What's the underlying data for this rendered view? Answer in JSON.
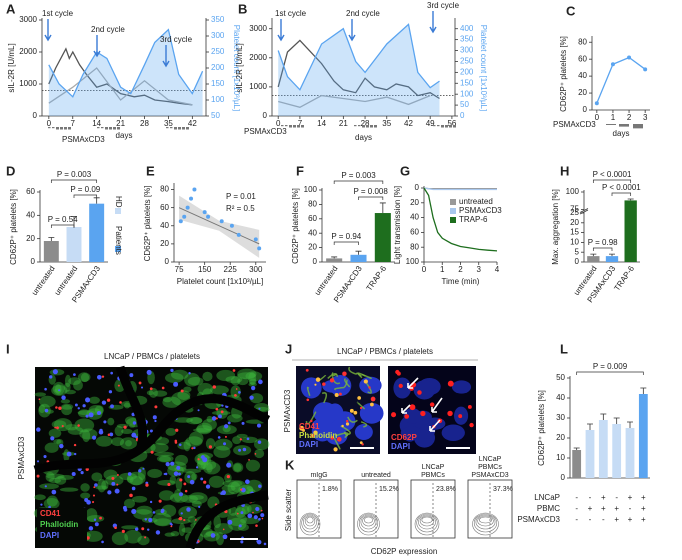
{
  "chart_data": [
    {
      "type": "line",
      "panel": "A",
      "xlim": [
        -2,
        46
      ],
      "xticks": [
        0,
        7,
        14,
        21,
        28,
        35,
        42
      ],
      "xlabel": "days",
      "ylim": [
        0,
        3000
      ],
      "yticks": [
        0,
        1000,
        2000,
        3000
      ],
      "ylabel": "sIL-2R [U/mL]",
      "y2lim": [
        50,
        350
      ],
      "y2ticks": [
        50,
        100,
        150,
        200,
        250,
        300,
        350
      ],
      "y2label": "Platelet count [1x10³/µL]",
      "reference_line": 800,
      "annotations": [
        "1st cycle",
        "2nd cycle",
        "3rd cycle"
      ],
      "schedule_label": "PSMAxCD3",
      "series": [
        {
          "color": "#555555",
          "x": [
            0,
            2,
            4,
            5,
            6,
            7,
            9,
            11,
            14,
            17,
            21,
            25,
            28,
            31,
            35,
            38,
            42
          ],
          "values": [
            1000,
            1500,
            1900,
            2100,
            1800,
            2000,
            1600,
            1300,
            900,
            1000,
            700,
            600,
            650,
            500,
            450,
            400,
            350
          ]
        },
        {
          "color": "#aaaaaa",
          "x": [
            0,
            7,
            14,
            21,
            28,
            35,
            42
          ],
          "values": [
            400,
            900,
            1500,
            500,
            1100,
            500,
            350
          ]
        },
        {
          "color": "#5aa4f0",
          "fill": true,
          "axis": "y2",
          "x": [
            0,
            3,
            7,
            10,
            14,
            17,
            21,
            24,
            28,
            31,
            35,
            38,
            42,
            45
          ],
          "values": [
            210,
            150,
            110,
            180,
            250,
            230,
            140,
            120,
            210,
            280,
            320,
            180,
            120,
            190
          ]
        }
      ]
    },
    {
      "type": "line",
      "panel": "B",
      "xlim": [
        -2,
        57
      ],
      "xticks": [
        0,
        7,
        14,
        21,
        28,
        35,
        42,
        49,
        56
      ],
      "xlabel": "days",
      "ylim": [
        0,
        3300
      ],
      "yticks": [
        0,
        1000,
        2000,
        3000
      ],
      "ylabel": "sIL-2R [U/mL]",
      "y2lim": [
        0,
        440
      ],
      "y2ticks": [
        0,
        50,
        100,
        150,
        200,
        250,
        300,
        350,
        400
      ],
      "y2label": "Platelet count [1x10³/µL]",
      "reference_line": 700,
      "annotations": [
        "1st cycle",
        "2nd cycle",
        "3rd cycle"
      ],
      "schedule_label": "PSMAxCD3",
      "series": [
        {
          "color": "#555555",
          "x": [
            0,
            3,
            7,
            14,
            18,
            21,
            25,
            28,
            31,
            35,
            38,
            42,
            45,
            49,
            52
          ],
          "values": [
            1000,
            2200,
            2600,
            1800,
            1200,
            900,
            800,
            1300,
            1000,
            900,
            1100,
            1000,
            700,
            800,
            600
          ]
        },
        {
          "color": "#aaaaaa",
          "x": [
            0,
            7,
            14,
            21,
            28,
            35,
            42,
            49
          ],
          "values": [
            500,
            300,
            700,
            600,
            500,
            650,
            400,
            700
          ]
        },
        {
          "color": "#5aa4f0",
          "fill": true,
          "axis": "y2",
          "x": [
            0,
            3,
            7,
            14,
            21,
            25,
            28,
            35,
            42,
            45,
            49,
            52
          ],
          "values": [
            300,
            180,
            120,
            330,
            400,
            250,
            200,
            330,
            420,
            200,
            130,
            160
          ]
        }
      ]
    },
    {
      "type": "line",
      "panel": "C",
      "xlim": [
        -0.3,
        3.3
      ],
      "xticks": [
        0,
        1,
        2,
        3
      ],
      "xlabel": "days",
      "ylim": [
        0,
        85
      ],
      "yticks": [
        0,
        20,
        40,
        60,
        80
      ],
      "ylabel": "CD62P⁺ platelets [%]",
      "markers": true,
      "schedule_label": "PSMAxCD3",
      "series": [
        {
          "color": "#5aa4f0",
          "x": [
            0,
            1,
            2,
            3
          ],
          "values": [
            8,
            54,
            62,
            48
          ]
        }
      ]
    },
    {
      "type": "bar",
      "panel": "D",
      "categories": [
        "untreated",
        "untreated",
        "PSMAxCD3"
      ],
      "values": [
        18,
        30,
        50
      ],
      "errors": [
        3,
        9,
        5
      ],
      "colors": [
        "#8c8c8c",
        "#c6dcf5",
        "#5aa4f0"
      ],
      "ylim": [
        0,
        60
      ],
      "yticks": [
        0,
        20,
        40,
        60
      ],
      "ylabel": "CD62P⁺ platelets [%]",
      "group_labels": [
        "HD",
        "Patients"
      ],
      "annotations": [
        "P = 0.003",
        "P = 0.54",
        "P = 0.09"
      ]
    },
    {
      "type": "scatter",
      "panel": "E",
      "x": [
        80,
        100,
        110,
        90,
        120,
        150,
        160,
        200,
        230,
        250,
        300,
        310
      ],
      "values": [
        45,
        60,
        70,
        50,
        80,
        55,
        50,
        45,
        40,
        30,
        25,
        15
      ],
      "color": "#5aa4f0",
      "xlim": [
        60,
        330
      ],
      "xticks": [
        75,
        150,
        225,
        300
      ],
      "xlabel": "Platelet count [1x10³/µL]",
      "ylim": [
        0,
        85
      ],
      "yticks": [
        0,
        20,
        40,
        60,
        80
      ],
      "ylabel": "CD62P⁺ platelets [%]",
      "fit": {
        "x": [
          75,
          310
        ],
        "values": [
          60,
          20
        ]
      },
      "annotations": [
        "P = 0.01",
        "R² = 0.5"
      ]
    },
    {
      "type": "bar",
      "panel": "F",
      "categories": [
        "untreated",
        "PSMAxCD3",
        "TRAP-6"
      ],
      "values": [
        5,
        10,
        68
      ],
      "errors": [
        2,
        5,
        14
      ],
      "colors": [
        "#8c8c8c",
        "#5aa4f0",
        "#1e6e1e"
      ],
      "ylim": [
        0,
        100
      ],
      "yticks": [
        0,
        20,
        40,
        60,
        80,
        100
      ],
      "ylabel": "CD62P⁺ platelets [%]",
      "annotations": [
        "P = 0.003",
        "P = 0.94",
        "P = 0.008"
      ]
    },
    {
      "type": "line",
      "panel": "G",
      "xlim": [
        0,
        4
      ],
      "xticks": [
        0,
        1,
        2,
        3,
        4
      ],
      "xlabel": "Time (min)",
      "ylim": [
        100,
        0
      ],
      "yticks": [
        0,
        20,
        40,
        60,
        80,
        100
      ],
      "ylabel": "Light transmission [%]",
      "legend": "upper right",
      "series": [
        {
          "name": "untreated",
          "color": "#999999",
          "x": [
            0,
            0.25,
            0.5,
            0.75,
            1,
            1.5,
            2,
            2.5,
            3,
            3.5,
            4
          ],
          "values": [
            0,
            1,
            1,
            1,
            1,
            1,
            1,
            1,
            1,
            1,
            1
          ]
        },
        {
          "name": "PSMAxCD3",
          "color": "#a9c8ee",
          "x": [
            0,
            0.25,
            0.5,
            0.75,
            1,
            1.5,
            2,
            2.5,
            3,
            3.5,
            4
          ],
          "values": [
            0,
            1,
            2,
            2,
            2,
            2,
            2,
            2,
            2,
            2,
            2
          ]
        },
        {
          "name": "TRAP-6",
          "color": "#1e6e1e",
          "x": [
            0,
            0.25,
            0.5,
            0.75,
            1,
            1.5,
            2,
            2.5,
            3,
            3.5,
            4
          ],
          "values": [
            0,
            10,
            40,
            60,
            68,
            75,
            79,
            81,
            83,
            84,
            85
          ]
        }
      ]
    },
    {
      "type": "bar",
      "panel": "H",
      "categories": [
        "untreated",
        "PSMAxCD3",
        "TRAP-6"
      ],
      "values": [
        3,
        3,
        88
      ],
      "errors": [
        1,
        1,
        2
      ],
      "colors": [
        "#8c8c8c",
        "#5aa4f0",
        "#1e6e1e"
      ],
      "ylim": [
        0,
        100
      ],
      "ybreak": [
        25,
        75
      ],
      "yticks": [
        0,
        5,
        10,
        15,
        20,
        25,
        75,
        100
      ],
      "ylabel": "Max. aggregation [%]",
      "annotations": [
        "P < 0.0001",
        "P < 0.0001",
        "P = 0.98"
      ]
    },
    {
      "type": "bar",
      "panel": "L",
      "values": [
        14,
        24,
        29,
        27,
        25,
        42
      ],
      "errors": [
        1,
        3,
        3,
        3,
        3,
        3
      ],
      "colors": [
        "#8c8c8c",
        "#c6dcf5",
        "#c6dcf5",
        "#c6dcf5",
        "#c6dcf5",
        "#5aa4f0"
      ],
      "ylim": [
        0,
        50
      ],
      "yticks": [
        0,
        10,
        20,
        30,
        40,
        50
      ],
      "ylabel": "CD62P⁺ platelets [%]",
      "annotations": [
        "P = 0.009"
      ],
      "conditions": [
        {
          "name": "LNCaP",
          "marks": [
            "-",
            "-",
            "+",
            "-",
            "+",
            "+"
          ]
        },
        {
          "name": "PBMC",
          "marks": [
            "-",
            "+",
            "+",
            "+",
            "-",
            "+"
          ]
        },
        {
          "name": "PSMAxCD3",
          "marks": [
            "-",
            "-",
            "-",
            "+",
            "+",
            "+"
          ]
        }
      ]
    }
  ],
  "figure_panels": {
    "I": {
      "panel": "I",
      "title": "LNCaP / PBMCs / platelets",
      "side_label": "PSMAxCD3",
      "channels": [
        "CD41",
        "Phalloidin",
        "DAPI"
      ]
    },
    "J": {
      "panel": "J",
      "title": "LNCaP / PBMCs / platelets",
      "side_label": "PSMAxCD3",
      "left_channels": [
        "CD41",
        "Phalloidin",
        "DAPI"
      ],
      "right_channels": [
        "CD62P",
        "DAPI"
      ]
    },
    "K": {
      "panel": "K",
      "ylabel": "Side scatter",
      "xlabel": "CD62P expression",
      "plots": [
        {
          "title": [
            "mIgG"
          ],
          "percent": "1.8%"
        },
        {
          "title": [
            "untreated"
          ],
          "percent": "15.2%"
        },
        {
          "title": [
            "LNCaP",
            "PBMCs"
          ],
          "percent": "23.8%"
        },
        {
          "title": [
            "LNCaP",
            "PBMCs",
            "PSMAxCD3"
          ],
          "percent": "37.3%"
        }
      ]
    }
  }
}
